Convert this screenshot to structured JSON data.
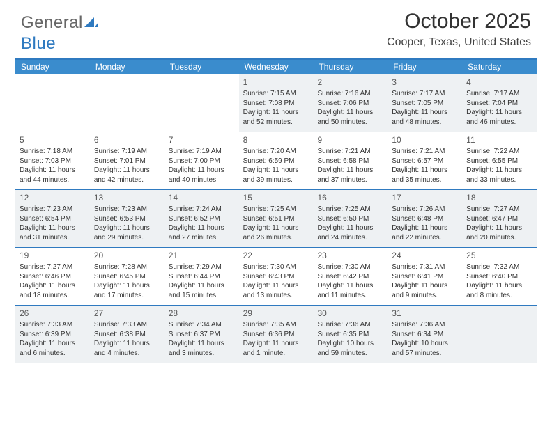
{
  "logo": {
    "text_general": "General",
    "text_blue": "Blue"
  },
  "title": {
    "month": "October 2025",
    "location": "Cooper, Texas, United States"
  },
  "colors": {
    "header_bg": "#3a8ccd",
    "border": "#2f7ac0",
    "shaded_bg": "#eef1f3",
    "text": "#333333",
    "title_text": "#333333"
  },
  "weekdays": [
    "Sunday",
    "Monday",
    "Tuesday",
    "Wednesday",
    "Thursday",
    "Friday",
    "Saturday"
  ],
  "weeks": [
    [
      {
        "day": "",
        "sunrise": "",
        "sunset": "",
        "daylight": "",
        "shaded": false,
        "empty": true
      },
      {
        "day": "",
        "sunrise": "",
        "sunset": "",
        "daylight": "",
        "shaded": false,
        "empty": true
      },
      {
        "day": "",
        "sunrise": "",
        "sunset": "",
        "daylight": "",
        "shaded": false,
        "empty": true
      },
      {
        "day": "1",
        "sunrise": "Sunrise: 7:15 AM",
        "sunset": "Sunset: 7:08 PM",
        "daylight": "Daylight: 11 hours and 52 minutes.",
        "shaded": true
      },
      {
        "day": "2",
        "sunrise": "Sunrise: 7:16 AM",
        "sunset": "Sunset: 7:06 PM",
        "daylight": "Daylight: 11 hours and 50 minutes.",
        "shaded": true
      },
      {
        "day": "3",
        "sunrise": "Sunrise: 7:17 AM",
        "sunset": "Sunset: 7:05 PM",
        "daylight": "Daylight: 11 hours and 48 minutes.",
        "shaded": true
      },
      {
        "day": "4",
        "sunrise": "Sunrise: 7:17 AM",
        "sunset": "Sunset: 7:04 PM",
        "daylight": "Daylight: 11 hours and 46 minutes.",
        "shaded": true
      }
    ],
    [
      {
        "day": "5",
        "sunrise": "Sunrise: 7:18 AM",
        "sunset": "Sunset: 7:03 PM",
        "daylight": "Daylight: 11 hours and 44 minutes.",
        "shaded": false
      },
      {
        "day": "6",
        "sunrise": "Sunrise: 7:19 AM",
        "sunset": "Sunset: 7:01 PM",
        "daylight": "Daylight: 11 hours and 42 minutes.",
        "shaded": false
      },
      {
        "day": "7",
        "sunrise": "Sunrise: 7:19 AM",
        "sunset": "Sunset: 7:00 PM",
        "daylight": "Daylight: 11 hours and 40 minutes.",
        "shaded": false
      },
      {
        "day": "8",
        "sunrise": "Sunrise: 7:20 AM",
        "sunset": "Sunset: 6:59 PM",
        "daylight": "Daylight: 11 hours and 39 minutes.",
        "shaded": false
      },
      {
        "day": "9",
        "sunrise": "Sunrise: 7:21 AM",
        "sunset": "Sunset: 6:58 PM",
        "daylight": "Daylight: 11 hours and 37 minutes.",
        "shaded": false
      },
      {
        "day": "10",
        "sunrise": "Sunrise: 7:21 AM",
        "sunset": "Sunset: 6:57 PM",
        "daylight": "Daylight: 11 hours and 35 minutes.",
        "shaded": false
      },
      {
        "day": "11",
        "sunrise": "Sunrise: 7:22 AM",
        "sunset": "Sunset: 6:55 PM",
        "daylight": "Daylight: 11 hours and 33 minutes.",
        "shaded": false
      }
    ],
    [
      {
        "day": "12",
        "sunrise": "Sunrise: 7:23 AM",
        "sunset": "Sunset: 6:54 PM",
        "daylight": "Daylight: 11 hours and 31 minutes.",
        "shaded": true
      },
      {
        "day": "13",
        "sunrise": "Sunrise: 7:23 AM",
        "sunset": "Sunset: 6:53 PM",
        "daylight": "Daylight: 11 hours and 29 minutes.",
        "shaded": true
      },
      {
        "day": "14",
        "sunrise": "Sunrise: 7:24 AM",
        "sunset": "Sunset: 6:52 PM",
        "daylight": "Daylight: 11 hours and 27 minutes.",
        "shaded": true
      },
      {
        "day": "15",
        "sunrise": "Sunrise: 7:25 AM",
        "sunset": "Sunset: 6:51 PM",
        "daylight": "Daylight: 11 hours and 26 minutes.",
        "shaded": true
      },
      {
        "day": "16",
        "sunrise": "Sunrise: 7:25 AM",
        "sunset": "Sunset: 6:50 PM",
        "daylight": "Daylight: 11 hours and 24 minutes.",
        "shaded": true
      },
      {
        "day": "17",
        "sunrise": "Sunrise: 7:26 AM",
        "sunset": "Sunset: 6:48 PM",
        "daylight": "Daylight: 11 hours and 22 minutes.",
        "shaded": true
      },
      {
        "day": "18",
        "sunrise": "Sunrise: 7:27 AM",
        "sunset": "Sunset: 6:47 PM",
        "daylight": "Daylight: 11 hours and 20 minutes.",
        "shaded": true
      }
    ],
    [
      {
        "day": "19",
        "sunrise": "Sunrise: 7:27 AM",
        "sunset": "Sunset: 6:46 PM",
        "daylight": "Daylight: 11 hours and 18 minutes.",
        "shaded": false
      },
      {
        "day": "20",
        "sunrise": "Sunrise: 7:28 AM",
        "sunset": "Sunset: 6:45 PM",
        "daylight": "Daylight: 11 hours and 17 minutes.",
        "shaded": false
      },
      {
        "day": "21",
        "sunrise": "Sunrise: 7:29 AM",
        "sunset": "Sunset: 6:44 PM",
        "daylight": "Daylight: 11 hours and 15 minutes.",
        "shaded": false
      },
      {
        "day": "22",
        "sunrise": "Sunrise: 7:30 AM",
        "sunset": "Sunset: 6:43 PM",
        "daylight": "Daylight: 11 hours and 13 minutes.",
        "shaded": false
      },
      {
        "day": "23",
        "sunrise": "Sunrise: 7:30 AM",
        "sunset": "Sunset: 6:42 PM",
        "daylight": "Daylight: 11 hours and 11 minutes.",
        "shaded": false
      },
      {
        "day": "24",
        "sunrise": "Sunrise: 7:31 AM",
        "sunset": "Sunset: 6:41 PM",
        "daylight": "Daylight: 11 hours and 9 minutes.",
        "shaded": false
      },
      {
        "day": "25",
        "sunrise": "Sunrise: 7:32 AM",
        "sunset": "Sunset: 6:40 PM",
        "daylight": "Daylight: 11 hours and 8 minutes.",
        "shaded": false
      }
    ],
    [
      {
        "day": "26",
        "sunrise": "Sunrise: 7:33 AM",
        "sunset": "Sunset: 6:39 PM",
        "daylight": "Daylight: 11 hours and 6 minutes.",
        "shaded": true
      },
      {
        "day": "27",
        "sunrise": "Sunrise: 7:33 AM",
        "sunset": "Sunset: 6:38 PM",
        "daylight": "Daylight: 11 hours and 4 minutes.",
        "shaded": true
      },
      {
        "day": "28",
        "sunrise": "Sunrise: 7:34 AM",
        "sunset": "Sunset: 6:37 PM",
        "daylight": "Daylight: 11 hours and 3 minutes.",
        "shaded": true
      },
      {
        "day": "29",
        "sunrise": "Sunrise: 7:35 AM",
        "sunset": "Sunset: 6:36 PM",
        "daylight": "Daylight: 11 hours and 1 minute.",
        "shaded": true
      },
      {
        "day": "30",
        "sunrise": "Sunrise: 7:36 AM",
        "sunset": "Sunset: 6:35 PM",
        "daylight": "Daylight: 10 hours and 59 minutes.",
        "shaded": true
      },
      {
        "day": "31",
        "sunrise": "Sunrise: 7:36 AM",
        "sunset": "Sunset: 6:34 PM",
        "daylight": "Daylight: 10 hours and 57 minutes.",
        "shaded": true
      },
      {
        "day": "",
        "sunrise": "",
        "sunset": "",
        "daylight": "",
        "shaded": true,
        "empty": true
      }
    ]
  ]
}
